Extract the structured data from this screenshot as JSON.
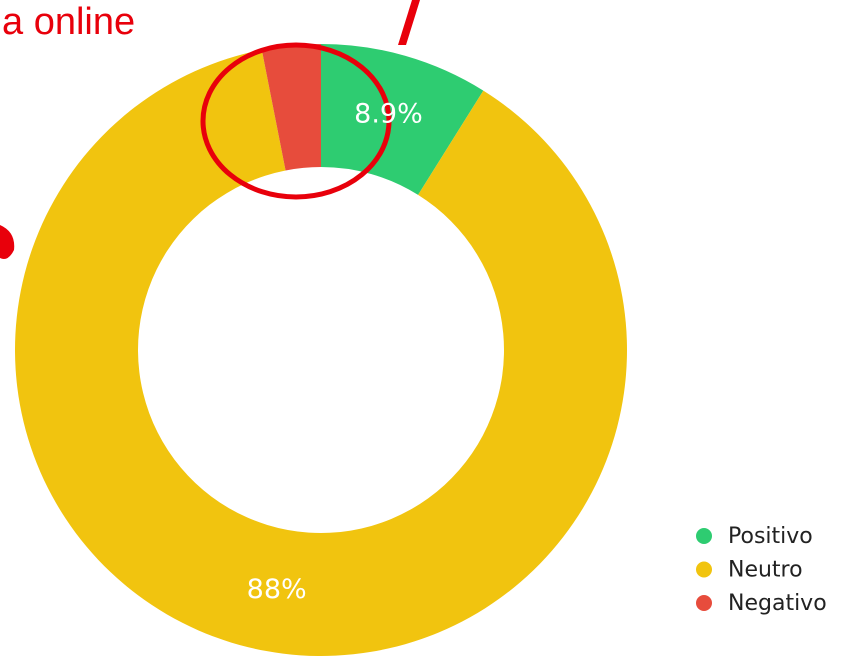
{
  "chart_data": {
    "type": "donut",
    "annotation": "a online",
    "categories": [
      "Positivo",
      "Neutro",
      "Negativo"
    ],
    "values": [
      8.9,
      88,
      3.1
    ],
    "value_labels": [
      "8.9%",
      "88%",
      null
    ],
    "colors": [
      "#2ecc71",
      "#f1c40f",
      "#e74c3c"
    ],
    "legend": "bottom-right"
  }
}
